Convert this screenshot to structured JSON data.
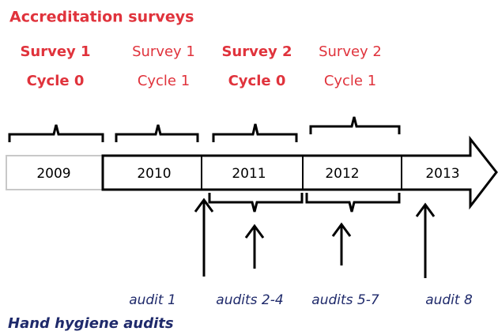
{
  "title": "Accreditation surveys",
  "surveys": [
    {
      "name": "Survey 1",
      "cycle": "Cycle 0"
    },
    {
      "name": "Survey 1",
      "cycle": "Cycle 1"
    },
    {
      "name": "Survey 2",
      "cycle": "Cycle 0"
    },
    {
      "name": "Survey 2",
      "cycle": "Cycle 1"
    }
  ],
  "years": [
    "2009",
    "2010",
    "2011",
    "2012",
    "2013"
  ],
  "audits": [
    "audit 1",
    "audits 2-4",
    "audits 5-7",
    "audit 8"
  ],
  "footer": "Hand hygiene audits"
}
